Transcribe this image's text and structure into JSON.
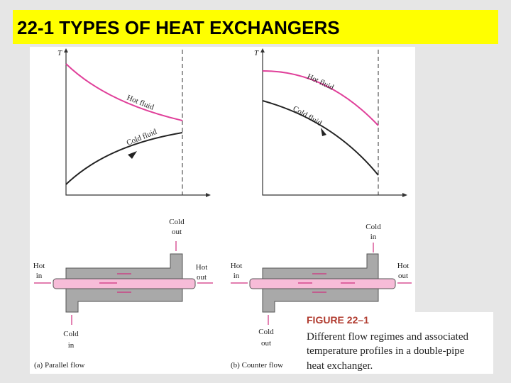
{
  "header": {
    "title": "22-1 TYPES OF HEAT EXCHANGERS"
  },
  "panels": [
    {
      "axis_label": "T",
      "hot_label": "Hot fluid",
      "cold_label": "Cold fluid",
      "cold_top": [
        "Cold",
        "out"
      ],
      "hot_in": [
        "Hot",
        "in"
      ],
      "hot_out": [
        "Hot",
        "out"
      ],
      "cold_bottom": [
        "Cold",
        "in"
      ],
      "caption": "(a) Parallel flow"
    },
    {
      "axis_label": "T",
      "hot_label": "Hot fluid",
      "cold_label": "Cold fluid",
      "cold_top": [
        "Cold",
        "in"
      ],
      "hot_in": [
        "Hot",
        "in"
      ],
      "hot_out": [
        "Hot",
        "out"
      ],
      "cold_bottom": [
        "Cold",
        "out"
      ],
      "caption": "(b) Counter flow"
    }
  ],
  "figure": {
    "label": "FIGURE 22–1",
    "caption_lines": [
      "Different flow regimes and associated",
      "temperature profiles in a double-pipe",
      "heat exchanger."
    ]
  }
}
